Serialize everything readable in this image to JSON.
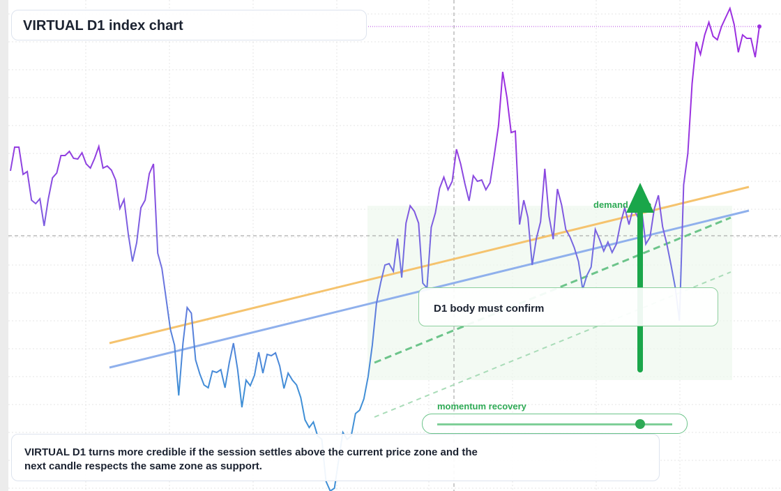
{
  "chart_data": {
    "type": "line",
    "title": "VIRTUAL D1 index chart",
    "annotations": [
      "D1 body must confirm",
      "demand zone",
      "momentum recovery"
    ],
    "caption": "VIRTUAL D1 turns more credible if the session settles above the current price zone and the next candle respects the same zone as support.",
    "ylim": [
      0,
      704
    ],
    "series": [
      {
        "name": "VIRTUAL D1",
        "color": "#9b30e0",
        "values": [
          459,
          493,
          493,
          454,
          458,
          417,
          412,
          419,
          380,
          419,
          449,
          456,
          481,
          481,
          487,
          477,
          476,
          485,
          469,
          463,
          477,
          494,
          463,
          466,
          460,
          446,
          405,
          418,
          369,
          329,
          356,
          406,
          417,
          455,
          469,
          341,
          319,
          276,
          232,
          209,
          137,
          212,
          263,
          255,
          188,
          168,
          152,
          148,
          172,
          170,
          174,
          148,
          184,
          212,
          174,
          120,
          159,
          151,
          166,
          199,
          169,
          196,
          194,
          198,
          179,
          147,
          169,
          159,
          152,
          134,
          102,
          91,
          99,
          79,
          74,
          14,
          0,
          4,
          44,
          84,
          74,
          79,
          111,
          116,
          132,
          164,
          209,
          269,
          299,
          324,
          326,
          315,
          362,
          306,
          384,
          409,
          401,
          384,
          298,
          291,
          378,
          399,
          434,
          450,
          432,
          444,
          490,
          469,
          441,
          416,
          452,
          444,
          446,
          432,
          442,
          482,
          524,
          601,
          564,
          514,
          516,
          382,
          417,
          392,
          324,
          362,
          386,
          462,
          394,
          361,
          433,
          410,
          375,
          364,
          349,
          329,
          289,
          309,
          321,
          375,
          361,
          344,
          357,
          342,
          354,
          384,
          406,
          382,
          406,
          394,
          404,
          354,
          364,
          404,
          424,
          379,
          354,
          324,
          292,
          244,
          439,
          484,
          584,
          644,
          626,
          654,
          672,
          652,
          647,
          666,
          679,
          692,
          669,
          629,
          654,
          649,
          649,
          622,
          666
        ]
      }
    ]
  }
}
